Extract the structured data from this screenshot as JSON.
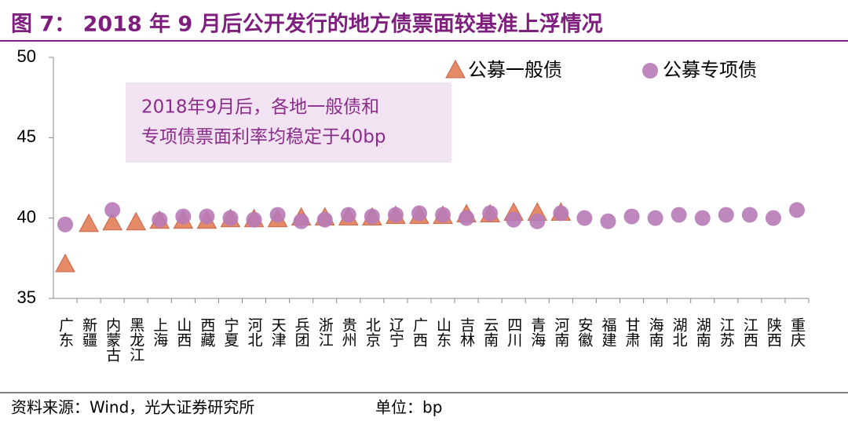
{
  "chart_data": {
    "type": "scatter",
    "title": "图 7：  2018 年 9 月后公开发行的地方债票面较基准上浮情况",
    "categories": [
      "广东",
      "新疆",
      "内蒙古",
      "黑龙江",
      "上海",
      "山西",
      "西藏",
      "宁夏",
      "河北",
      "天津",
      "兵团",
      "浙江",
      "贵州",
      "北京",
      "辽宁",
      "广西",
      "山东",
      "吉林",
      "云南",
      "四川",
      "青海",
      "河南",
      "安徽",
      "福建",
      "甘肃",
      "海南",
      "湖北",
      "湖南",
      "江苏",
      "江西",
      "陕西",
      "重庆"
    ],
    "series": [
      {
        "name": "公募一般债",
        "color": "#e58a66",
        "marker": "triangle",
        "values": [
          37.1,
          39.6,
          39.7,
          39.7,
          39.8,
          39.8,
          39.8,
          39.9,
          39.9,
          39.9,
          40.0,
          40.0,
          40.0,
          40.0,
          40.1,
          40.1,
          40.1,
          40.2,
          40.2,
          40.3,
          40.3,
          40.3,
          null,
          null,
          null,
          null,
          null,
          null,
          null,
          null,
          null,
          null
        ]
      },
      {
        "name": "公募专项债",
        "color": "#b77ab7",
        "marker": "circle",
        "values": [
          39.6,
          null,
          40.5,
          null,
          39.9,
          40.1,
          40.1,
          40.0,
          39.9,
          40.2,
          39.8,
          39.9,
          40.2,
          40.1,
          40.2,
          40.3,
          40.2,
          40.0,
          40.3,
          39.9,
          39.8,
          40.3,
          40.0,
          39.8,
          40.1,
          40.0,
          40.2,
          40.0,
          40.2,
          40.2,
          40.0,
          40.5
        ]
      }
    ],
    "ylim": [
      35,
      50
    ],
    "yticks": [
      35,
      40,
      45,
      50
    ],
    "annotation": [
      "2018年9月后，各地一般债和",
      "专项债票面利率均稳定于40bp"
    ],
    "source": "资料来源：Wind，光大证券研究所",
    "unit": "单位：bp"
  }
}
